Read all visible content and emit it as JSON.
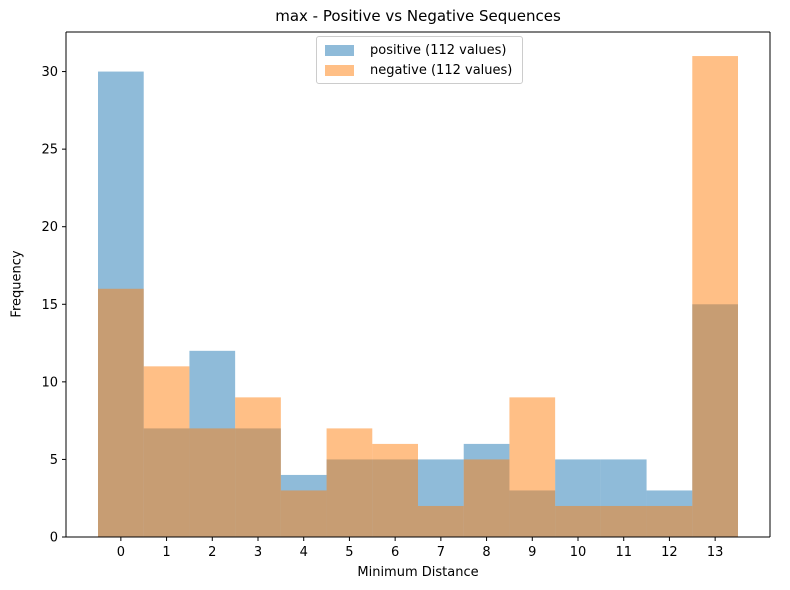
{
  "chart_data": {
    "type": "bar",
    "title": "max - Positive vs Negative Sequences",
    "xlabel": "Minimum Distance",
    "ylabel": "Frequency",
    "categories": [
      "0",
      "1",
      "2",
      "3",
      "4",
      "5",
      "6",
      "7",
      "8",
      "9",
      "10",
      "11",
      "12",
      "13"
    ],
    "series": [
      {
        "name": "positive (112 values)",
        "color": "#1f77b4",
        "values": [
          30,
          7,
          12,
          7,
          4,
          5,
          5,
          5,
          6,
          3,
          5,
          5,
          3,
          15
        ]
      },
      {
        "name": "negative (112 values)",
        "color": "#ff7f0e",
        "values": [
          16,
          11,
          7,
          9,
          3,
          7,
          6,
          2,
          5,
          9,
          2,
          2,
          2,
          31
        ]
      }
    ],
    "bar_alpha": 0.5,
    "ylim": [
      0,
      32.55
    ],
    "xlim": [
      -1.2,
      14.2
    ],
    "yticks": [
      0,
      5,
      10,
      15,
      20,
      25,
      30
    ],
    "grid": false,
    "legend_position": "upper center"
  }
}
